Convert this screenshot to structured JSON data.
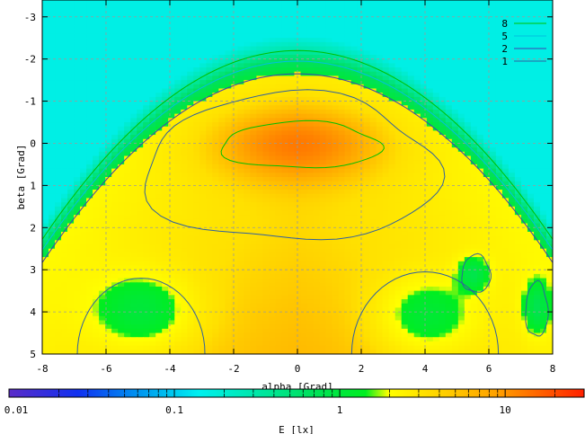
{
  "chart_data": {
    "type": "heatmap",
    "xlabel": "alpha [Grad]",
    "ylabel": "beta [Grad]",
    "xlim": [
      -8,
      8
    ],
    "ylim": [
      -3.4,
      5
    ],
    "y_axis_inverted": true,
    "grid": true,
    "x_ticks": [
      "-8",
      "-6",
      "-4",
      "-2",
      "0",
      "2",
      "4",
      "6",
      "8"
    ],
    "y_ticks": [
      "-3",
      "-2",
      "-1",
      "0",
      "1",
      "2",
      "3",
      "4",
      "5"
    ],
    "colorbar": {
      "label": "E [lx]",
      "scale": "log",
      "range": [
        0.01,
        30
      ],
      "tick_labels": [
        "0.01",
        "0.1",
        "1",
        "10"
      ]
    },
    "legend_position": "top-right",
    "contour_levels": [
      {
        "label": "8",
        "color": "#00c000"
      },
      {
        "label": "5",
        "color": "#00c0e0"
      },
      {
        "label": "2",
        "color": "#4040b0"
      },
      {
        "label": "1",
        "color": "#3060a0"
      }
    ],
    "peak_value": 14,
    "peak_location": {
      "alpha": 0,
      "beta": 0
    }
  },
  "colors": {
    "low": "#00f0f0",
    "mid_low": "#00e070",
    "mid": "#00ee20",
    "mid_high": "#ffe000",
    "high": "#ff7000"
  }
}
